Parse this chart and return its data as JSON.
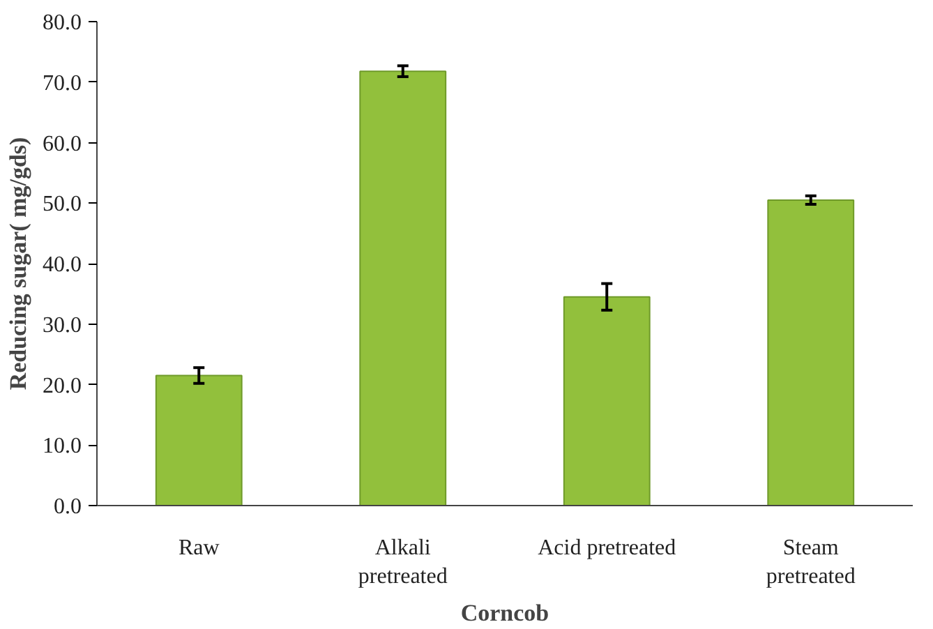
{
  "chart_data": {
    "type": "bar",
    "xlabel": "Corncob",
    "ylabel": "Reducing sugar( mg/gds)",
    "categories": [
      "Raw",
      "Alkali\npretreated",
      "Acid pretreated",
      "Steam\npretreated"
    ],
    "values": [
      21.5,
      71.8,
      34.5,
      50.5
    ],
    "errors": [
      1.3,
      0.9,
      2.2,
      0.7
    ],
    "color": "#92c03c",
    "ylim": [
      0,
      80
    ],
    "yticks": [
      {
        "value": 0,
        "label": "0.0"
      },
      {
        "value": 10,
        "label": "10.0"
      },
      {
        "value": 20,
        "label": "20.0"
      },
      {
        "value": 30,
        "label": "30.0"
      },
      {
        "value": 40,
        "label": "40.0"
      },
      {
        "value": 50,
        "label": "50.0"
      },
      {
        "value": 60,
        "label": "60.0"
      },
      {
        "value": 70,
        "label": "70.0"
      },
      {
        "value": 80,
        "label": "80.0"
      }
    ],
    "grid": false
  }
}
